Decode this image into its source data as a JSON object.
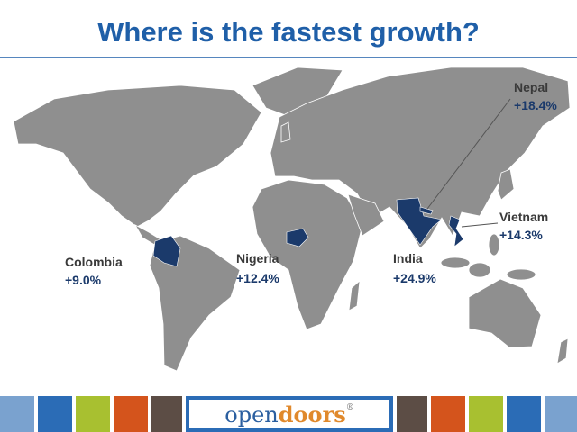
{
  "title": "Where is the fastest growth?",
  "labels": [
    {
      "country": "Nepal",
      "growth": "+18.4%"
    },
    {
      "country": "Vietnam",
      "growth": "+14.3%"
    },
    {
      "country": "Colombia",
      "growth": "+9.0%"
    },
    {
      "country": "Nigeria",
      "growth": "+12.4%"
    },
    {
      "country": "India",
      "growth": "+24.9%"
    }
  ],
  "footer": {
    "logo_open": "open",
    "logo_doors": "doors",
    "trademark": "®"
  }
}
